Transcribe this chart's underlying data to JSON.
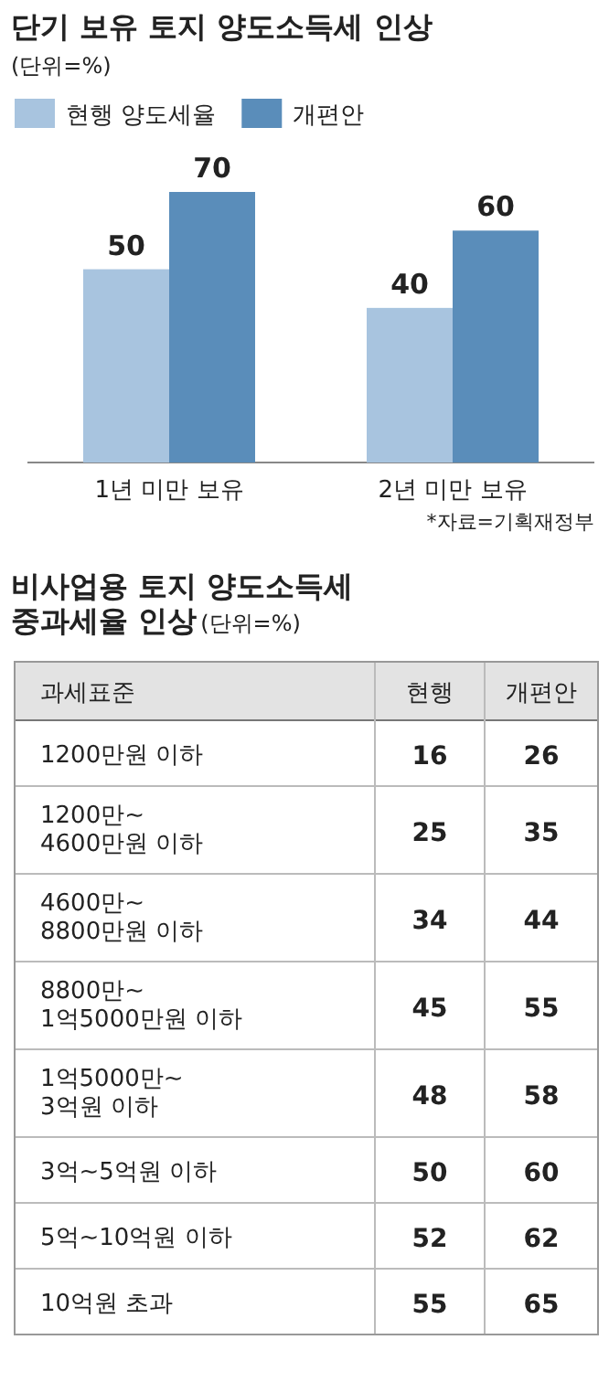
{
  "chart_data": [
    {
      "type": "bar",
      "title": "단기 보유 토지 양도소득세 인상",
      "subtitle": "(단위=%)",
      "categories": [
        "1년 미만 보유",
        "2년 미만 보유"
      ],
      "series": [
        {
          "name": "현행 양도세율",
          "color": "#a8c4df",
          "values": [
            50,
            40
          ]
        },
        {
          "name": "개편안",
          "color": "#5a8dba",
          "values": [
            70,
            60
          ]
        }
      ],
      "data_labels": true,
      "legend": "top left",
      "annotations": [
        "*자료=기획재정부"
      ]
    },
    {
      "type": "other",
      "title": "비사업용 토지 양도소득세\n중과세율 인상",
      "subtitle": "(단위=%)",
      "ylabel": "과세표준",
      "categories": [
        "1200만원 이하",
        "1200만~\n4600만원 이하",
        "4600만~\n8800만원 이하",
        "8800만~\n1억5000만원 이하",
        "1억5000만~\n3억원 이하",
        "3억~5억원 이하",
        "5억~10억원 이하",
        "10억원 초과"
      ],
      "series": [
        {
          "name": "현행",
          "values": [
            16,
            25,
            34,
            45,
            48,
            50,
            52,
            55
          ]
        },
        {
          "name": "개편안",
          "values": [
            26,
            35,
            44,
            55,
            58,
            60,
            62,
            65
          ]
        }
      ],
      "data_labels": true
    }
  ]
}
